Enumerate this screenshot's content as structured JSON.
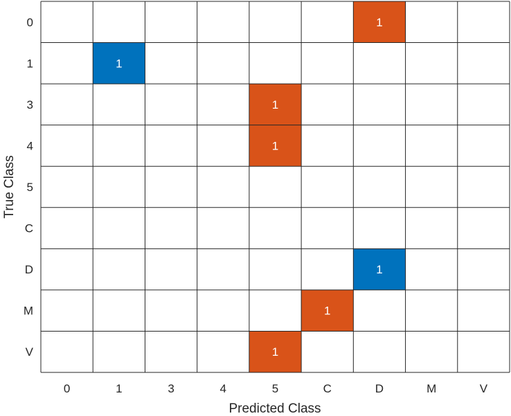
{
  "chart_data": {
    "type": "heatmap",
    "xlabel": "Predicted Class",
    "ylabel": "True Class",
    "x_categories": [
      "0",
      "1",
      "3",
      "4",
      "5",
      "C",
      "D",
      "M",
      "V"
    ],
    "y_categories": [
      "0",
      "1",
      "3",
      "4",
      "5",
      "C",
      "D",
      "M",
      "V"
    ],
    "cells": [
      {
        "true": "0",
        "predicted": "D",
        "value": 1,
        "correct": false
      },
      {
        "true": "1",
        "predicted": "1",
        "value": 1,
        "correct": true
      },
      {
        "true": "3",
        "predicted": "5",
        "value": 1,
        "correct": false
      },
      {
        "true": "4",
        "predicted": "5",
        "value": 1,
        "correct": false
      },
      {
        "true": "D",
        "predicted": "D",
        "value": 1,
        "correct": true
      },
      {
        "true": "M",
        "predicted": "C",
        "value": 1,
        "correct": false
      },
      {
        "true": "V",
        "predicted": "5",
        "value": 1,
        "correct": false
      }
    ],
    "colors": {
      "correct": "#0072BD",
      "incorrect": "#D95319",
      "grid": "#262626",
      "background": "#ffffff"
    }
  }
}
